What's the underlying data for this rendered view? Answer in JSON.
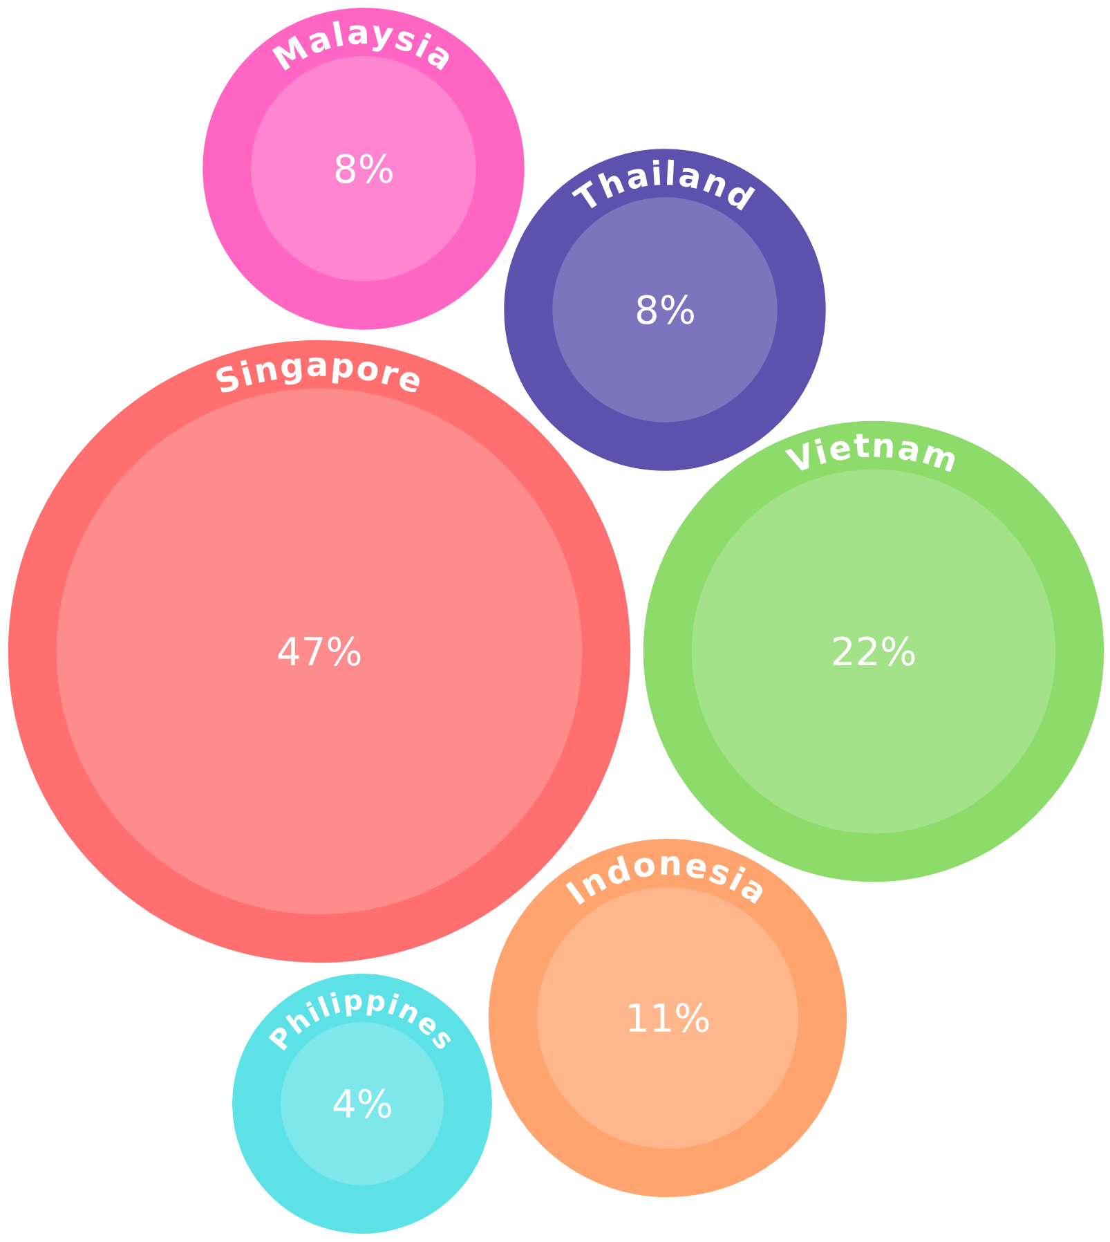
{
  "chart_data": {
    "type": "other",
    "categories": [
      "Malaysia",
      "Thailand",
      "Singapore",
      "Vietnam",
      "Indonesia",
      "Philippines"
    ],
    "values": [
      8,
      8,
      47,
      22,
      11,
      4
    ],
    "value_labels": [
      "8%",
      "8%",
      "47%",
      "22%",
      "11%",
      "4%"
    ],
    "colors": [
      "#ff66c4",
      "#5e50ad",
      "#ff6f6f",
      "#8ddb6b",
      "#ffa46e",
      "#5ce1e6"
    ]
  }
}
